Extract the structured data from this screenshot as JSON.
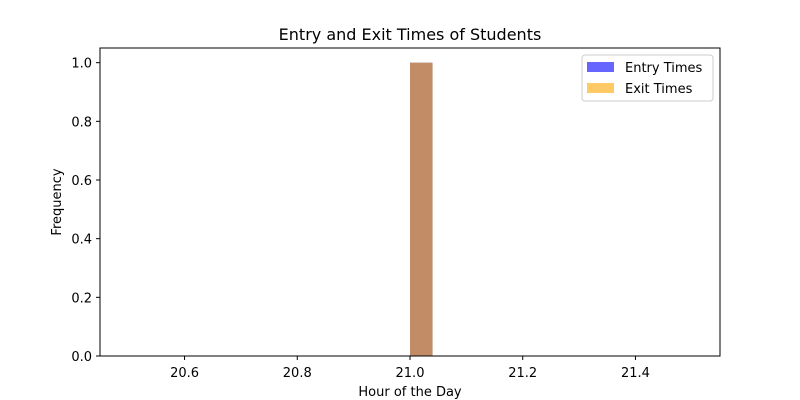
{
  "chart_data": {
    "type": "bar",
    "title": "Entry and Exit Times of Students",
    "xlabel": "Hour of the Day",
    "ylabel": "Frequency",
    "xlim": [
      20.45,
      21.55
    ],
    "ylim": [
      0,
      1.05
    ],
    "xticks": [
      20.6,
      20.8,
      21.0,
      21.2,
      21.4
    ],
    "xtick_labels": [
      "20.6",
      "20.8",
      "21.0",
      "21.2",
      "21.4"
    ],
    "yticks": [
      0.0,
      0.2,
      0.4,
      0.6,
      0.8,
      1.0
    ],
    "ytick_labels": [
      "0.0",
      "0.2",
      "0.4",
      "0.6",
      "0.8",
      "1.0"
    ],
    "legend_position": "top-right",
    "grid": false,
    "series": [
      {
        "name": "Entry Times",
        "color": "#0000ff",
        "opacity": 0.6,
        "bins": [
          {
            "x0": 21.0,
            "x1": 21.04,
            "value": 1
          }
        ]
      },
      {
        "name": "Exit Times",
        "color": "#ffa500",
        "opacity": 0.6,
        "bins": [
          {
            "x0": 21.0,
            "x1": 21.04,
            "value": 1
          }
        ]
      }
    ]
  }
}
